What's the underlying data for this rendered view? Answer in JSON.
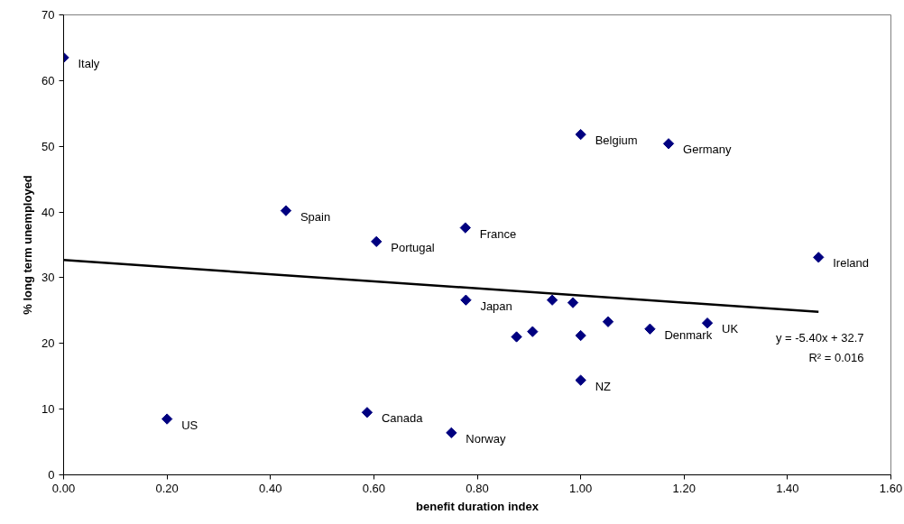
{
  "chart_data": {
    "type": "scatter",
    "xlabel": "benefit duration index",
    "ylabel": "% long term unemployed",
    "xlim": [
      0,
      1.6
    ],
    "xticks": [
      {
        "value": 0,
        "label": "0.00"
      },
      {
        "value": 0.2,
        "label": "0.20"
      },
      {
        "value": 0.4,
        "label": "0.40"
      },
      {
        "value": 0.6,
        "label": "0.60"
      },
      {
        "value": 0.8,
        "label": "0.80"
      },
      {
        "value": 1.0,
        "label": "1.00"
      },
      {
        "value": 1.2,
        "label": "1.20"
      },
      {
        "value": 1.4,
        "label": "1.40"
      },
      {
        "value": 1.6,
        "label": "1.60"
      }
    ],
    "ylim": [
      0,
      70
    ],
    "yticks": [
      0,
      10,
      20,
      30,
      40,
      50,
      60,
      70
    ],
    "grid": false,
    "marker": "diamond",
    "series": [
      {
        "color": "#000080",
        "x": [
          0,
          0.43,
          0.605,
          0.777,
          1.0,
          1.17,
          1.46,
          0.778,
          0.945,
          0.985,
          0.876,
          0.907,
          1.0,
          1.0,
          1.053,
          1.134,
          1.245,
          0.2,
          0.587,
          0.75
        ],
        "values": [
          63.5,
          40.2,
          35.5,
          37.6,
          51.8,
          50.4,
          33.1,
          26.6,
          26.6,
          26.2,
          21.0,
          21.8,
          21.2,
          14.4,
          23.3,
          22.2,
          23.1,
          8.5,
          9.5,
          6.4
        ]
      },
      {
        "type": "line",
        "color": "#000000",
        "line_style": "solid",
        "marker": "none",
        "x": [
          0,
          1.46
        ],
        "values": [
          32.7,
          24.8
        ]
      }
    ],
    "annotations": [
      {
        "text": "Italy",
        "x": 0,
        "y": 63.5
      },
      {
        "text": "Spain",
        "x": 0.43,
        "y": 40.2
      },
      {
        "text": "Portugal",
        "x": 0.605,
        "y": 35.5
      },
      {
        "text": "France",
        "x": 0.777,
        "y": 37.6
      },
      {
        "text": "Belgium",
        "x": 1.0,
        "y": 51.8
      },
      {
        "text": "Germany",
        "x": 1.17,
        "y": 50.4
      },
      {
        "text": "Ireland",
        "x": 1.46,
        "y": 33.1
      },
      {
        "text": "Japan",
        "x": 0.778,
        "y": 26.6
      },
      {
        "text": "NZ",
        "x": 1.0,
        "y": 14.4
      },
      {
        "text": "Denmark",
        "x": 1.134,
        "y": 22.2
      },
      {
        "text": "UK",
        "x": 1.245,
        "y": 23.1
      },
      {
        "text": "US",
        "x": 0.2,
        "y": 8.5
      },
      {
        "text": "Canada",
        "x": 0.587,
        "y": 9.5
      },
      {
        "text": "Norway",
        "x": 0.75,
        "y": 6.4
      },
      "y = -5.40x + 32.7",
      "R² = 0.016"
    ]
  }
}
